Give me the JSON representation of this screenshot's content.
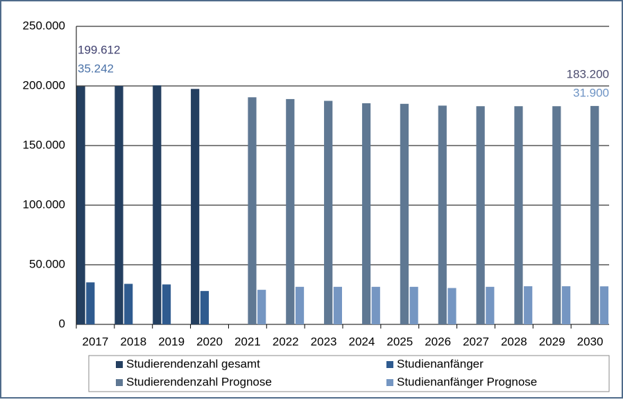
{
  "chart_data": {
    "type": "bar",
    "categories": [
      "2017",
      "2018",
      "2019",
      "2020",
      "2021",
      "2022",
      "2023",
      "2024",
      "2025",
      "2026",
      "2027",
      "2028",
      "2029",
      "2030"
    ],
    "series": [
      {
        "name": "Studierendenzahl gesamt",
        "color": "#243f60",
        "label_color": "#3e3f6e",
        "values": [
          199612,
          200000,
          200500,
          197500,
          null,
          null,
          null,
          null,
          null,
          null,
          null,
          null,
          null,
          null
        ],
        "value_labels": [
          "199.612",
          null,
          null,
          null,
          null,
          null,
          null,
          null,
          null,
          null,
          null,
          null,
          null,
          null
        ]
      },
      {
        "name": "Studienanfänger",
        "color": "#2f5b8f",
        "label_color": "#4a72a8",
        "values": [
          35242,
          34000,
          33500,
          28000,
          null,
          null,
          null,
          null,
          null,
          null,
          null,
          null,
          null,
          null
        ],
        "value_labels": [
          "35.242",
          null,
          null,
          null,
          null,
          null,
          null,
          null,
          null,
          null,
          null,
          null,
          null,
          null
        ]
      },
      {
        "name": "Studierendenzahl Prognose",
        "color": "#5f7893",
        "label_color": "#4a4b6e",
        "values": [
          null,
          null,
          null,
          null,
          190500,
          189000,
          187500,
          185500,
          185000,
          183500,
          183000,
          183000,
          183000,
          183200
        ],
        "value_labels": [
          null,
          null,
          null,
          null,
          null,
          null,
          null,
          null,
          null,
          null,
          null,
          null,
          null,
          "183.200"
        ]
      },
      {
        "name": "Studienanfänger Prognose",
        "color": "#7596c2",
        "label_color": "#6d93c4",
        "values": [
          null,
          null,
          null,
          null,
          29000,
          31500,
          31500,
          31500,
          31500,
          30500,
          31500,
          32000,
          32000,
          31900
        ],
        "value_labels": [
          null,
          null,
          null,
          null,
          null,
          null,
          null,
          null,
          null,
          null,
          null,
          null,
          null,
          "31.900"
        ]
      }
    ],
    "ylim": [
      0,
      250000
    ],
    "yticks": [
      0,
      {
        "value": 50000,
        "label": "50.000"
      },
      {
        "value": 100000,
        "label": "100.000"
      },
      {
        "value": 150000,
        "label": "150.000"
      },
      {
        "value": 200000,
        "label": "200.000"
      },
      {
        "value": 250000,
        "label": "250.000"
      }
    ],
    "grid": true,
    "legend": "bottom"
  }
}
